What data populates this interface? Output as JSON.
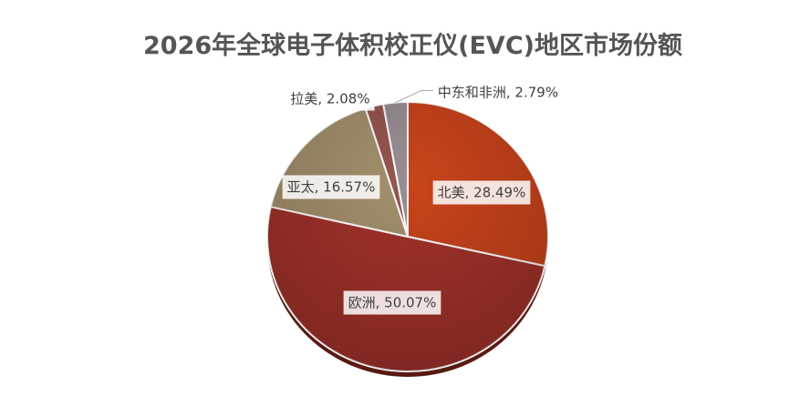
{
  "chart_data": {
    "type": "pie",
    "title": "2026年全球电子体积校正仪(EVC)地区市场份额",
    "slices": [
      {
        "name": "北美",
        "value": 28.49,
        "label": "北美, 28.49%",
        "color": "#C9441B"
      },
      {
        "name": "欧洲",
        "value": 50.07,
        "label": "欧洲, 50.07%",
        "color": "#A2322A"
      },
      {
        "name": "亚太",
        "value": 16.57,
        "label": "亚太, 16.57%",
        "color": "#A4906D"
      },
      {
        "name": "拉美",
        "value": 2.08,
        "label": "拉美, 2.08%",
        "color": "#96564E"
      },
      {
        "name": "中东和非洲",
        "value": 2.79,
        "label": "中东和非洲, 2.79%",
        "color": "#9A8E94"
      }
    ],
    "legend": "none"
  }
}
